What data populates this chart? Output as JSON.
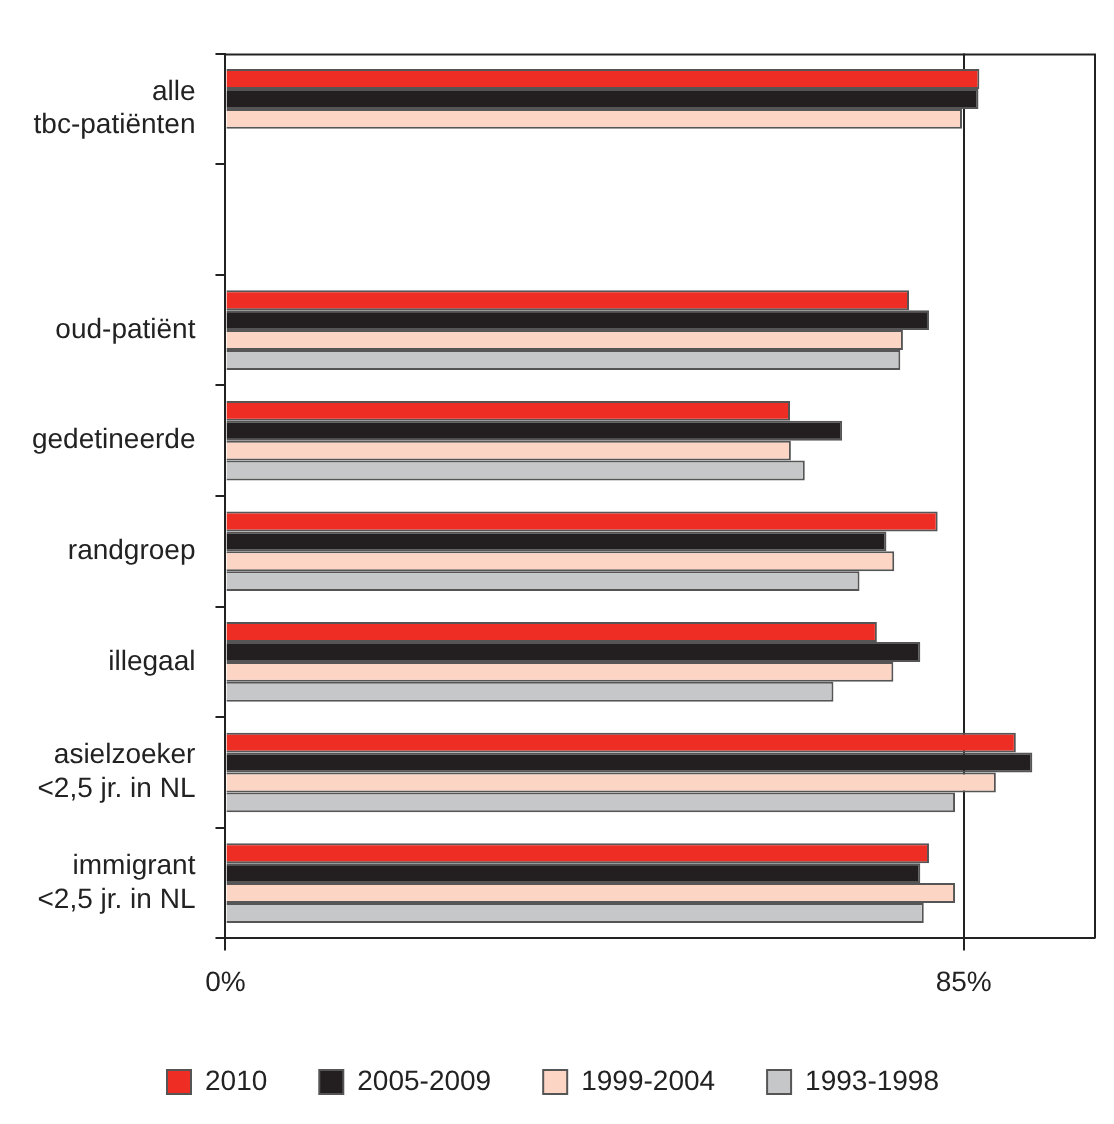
{
  "chart_data": {
    "type": "bar",
    "orientation": "horizontal",
    "categories": [
      "alle\ntbc-patiënten",
      null,
      "oud-patiënt",
      "gedetineerde",
      "randgroep",
      "illegaal",
      "asielzoeker\n<2,5 jr. in NL",
      "immigrant\n<2,5 jr. in NL"
    ],
    "series": [
      {
        "name": "2010",
        "color": "#ee2e24",
        "values": [
          86.8,
          null,
          78.7,
          65.0,
          82.0,
          75.0,
          91.0,
          81.0
        ]
      },
      {
        "name": "2005-2009",
        "color": "#231f20",
        "values": [
          86.7,
          null,
          81.0,
          71.0,
          76.1,
          80.0,
          92.9,
          80.0
        ]
      },
      {
        "name": "1999-2004",
        "color": "#fdd5c4",
        "values": [
          84.8,
          null,
          78.0,
          65.1,
          77.0,
          76.9,
          88.7,
          84.0
        ]
      },
      {
        "name": "1993-1998",
        "color": "#c6c7c8",
        "values": [
          null,
          null,
          77.7,
          66.7,
          73.0,
          70.0,
          84.0,
          80.4
        ]
      }
    ],
    "xlim": [
      0,
      100
    ],
    "xticks": [
      {
        "value": 0,
        "label": "0%"
      },
      {
        "value": 85,
        "label": "85%"
      }
    ],
    "grid": "x",
    "legend": "bottom"
  }
}
